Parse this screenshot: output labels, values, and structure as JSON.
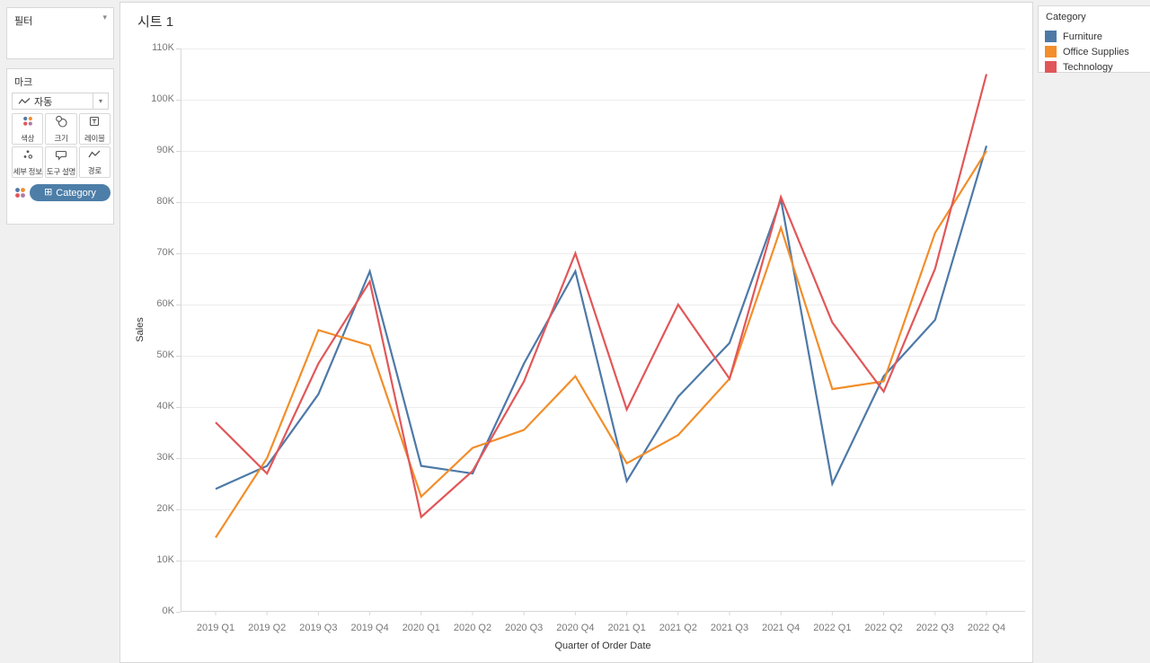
{
  "filter_card": {
    "title": "필터"
  },
  "marks_card": {
    "title": "마크",
    "mark_type": {
      "label": "자동",
      "icon": "line-mark-icon"
    },
    "buttons": [
      {
        "label": "색상",
        "icon": "color-icon"
      },
      {
        "label": "크기",
        "icon": "size-icon"
      },
      {
        "label": "레이블",
        "icon": "label-icon"
      },
      {
        "label": "세부 정보",
        "icon": "detail-icon"
      },
      {
        "label": "도구 설명",
        "icon": "tooltip-icon"
      },
      {
        "label": "경로",
        "icon": "path-icon"
      }
    ],
    "pill": {
      "label": "Category",
      "color": "#4d7ea8",
      "plus_glyph": "⊞"
    }
  },
  "sheet": {
    "title": "시트 1"
  },
  "legend": {
    "title": "Category"
  },
  "chart_data": {
    "type": "line",
    "title": "시트 1",
    "xlabel": "Quarter of Order Date",
    "ylabel": "Sales",
    "ylim": [
      0,
      110000
    ],
    "y_tick_step": 10000,
    "y_tick_suffix": "K",
    "grid": "horizontal",
    "legend_position": "top-right",
    "categories": [
      "2019 Q1",
      "2019 Q2",
      "2019 Q3",
      "2019 Q4",
      "2020 Q1",
      "2020 Q2",
      "2020 Q3",
      "2020 Q4",
      "2021 Q1",
      "2021 Q2",
      "2021 Q3",
      "2021 Q4",
      "2022 Q1",
      "2022 Q2",
      "2022 Q3",
      "2022 Q4"
    ],
    "series": [
      {
        "name": "Furniture",
        "color": "#4e79a7",
        "values": [
          24000,
          28500,
          42500,
          66500,
          28500,
          27000,
          48500,
          66500,
          25500,
          42000,
          52500,
          80500,
          25000,
          46000,
          57000,
          91000
        ]
      },
      {
        "name": "Office Supplies",
        "color": "#f28e2b",
        "values": [
          14500,
          30000,
          55000,
          52000,
          22500,
          32000,
          35500,
          46000,
          29000,
          34500,
          45500,
          75000,
          43500,
          45000,
          74000,
          90000
        ]
      },
      {
        "name": "Technology",
        "color": "#e15759",
        "values": [
          37000,
          27000,
          48500,
          64500,
          18500,
          27500,
          45000,
          70000,
          39500,
          60000,
          45500,
          81000,
          56500,
          43000,
          67000,
          105000
        ]
      }
    ]
  }
}
